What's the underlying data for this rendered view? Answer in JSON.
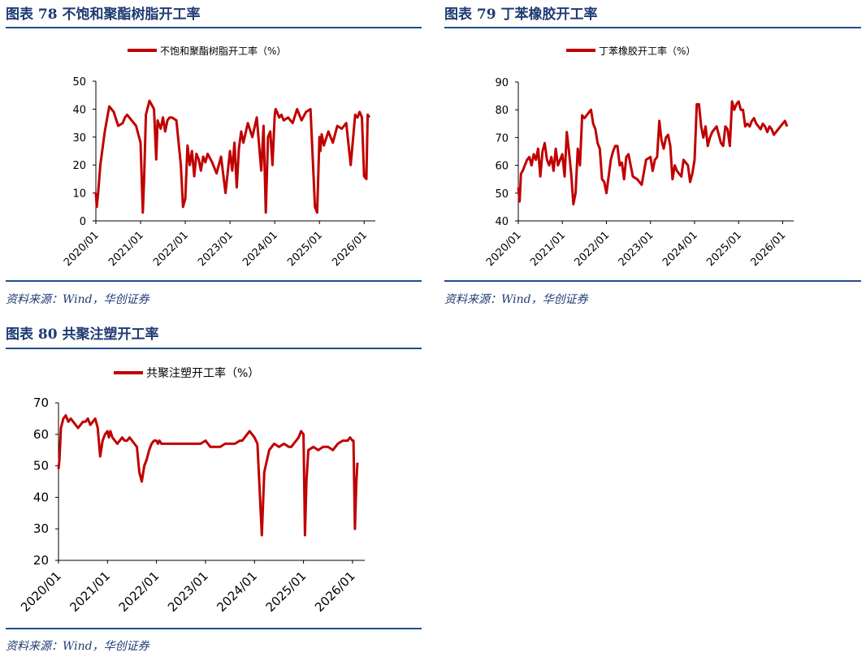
{
  "colors": {
    "line": "#c00000",
    "title": "#1f3b73",
    "rule": "#1f4e8c"
  },
  "charts": [
    {
      "title": "图表 78 不饱和聚酯树脂开工率",
      "source": "资料来源：Wind，华创证券",
      "chart_data": {
        "type": "line",
        "series": [
          {
            "name": "不饱和聚酯树脂开工率（%）",
            "x": [
              2020.0,
              2020.02,
              2020.05,
              2020.1,
              2020.2,
              2020.3,
              2020.35,
              2020.4,
              2020.5,
              2020.6,
              2020.65,
              2020.7,
              2020.8,
              2020.9,
              2021.0,
              2021.05,
              2021.08,
              2021.12,
              2021.2,
              2021.3,
              2021.35,
              2021.38,
              2021.4,
              2021.45,
              2021.5,
              2021.55,
              2021.6,
              2021.65,
              2021.7,
              2021.8,
              2021.9,
              2021.95,
              2022.0,
              2022.05,
              2022.1,
              2022.15,
              2022.2,
              2022.25,
              2022.3,
              2022.35,
              2022.4,
              2022.45,
              2022.5,
              2022.6,
              2022.7,
              2022.8,
              2022.9,
              2023.0,
              2023.05,
              2023.1,
              2023.15,
              2023.2,
              2023.25,
              2023.3,
              2023.4,
              2023.5,
              2023.6,
              2023.7,
              2023.75,
              2023.8,
              2023.85,
              2023.9,
              2023.95,
              2024.0,
              2024.02,
              2024.05,
              2024.1,
              2024.15,
              2024.2,
              2024.3,
              2024.4,
              2024.5,
              2024.6,
              2024.7,
              2024.8,
              2024.9,
              2024.95,
              2025.0,
              2025.02,
              2025.05,
              2025.1,
              2025.2,
              2025.3,
              2025.4,
              2025.5,
              2025.6,
              2025.7,
              2025.8,
              2025.85,
              2025.9,
              2025.95,
              2026.0,
              2026.05,
              2026.08,
              2026.12
            ],
            "values": [
              10,
              5,
              10,
              20,
              32,
              41,
              40,
              39,
              34,
              35,
              37,
              38,
              36,
              34,
              28,
              3,
              15,
              38,
              43,
              40,
              22,
              36,
              35,
              33,
              37,
              32,
              36,
              37,
              37,
              36,
              20,
              5,
              8,
              27,
              20,
              25,
              16,
              24,
              22,
              18,
              23,
              21,
              24,
              21,
              17,
              23,
              10,
              25,
              18,
              28,
              12,
              26,
              32,
              28,
              35,
              30,
              37,
              18,
              34,
              3,
              30,
              32,
              20,
              38,
              40,
              39,
              37,
              38,
              36,
              37,
              35,
              40,
              36,
              39,
              40,
              5,
              3,
              30,
              25,
              31,
              27,
              32,
              28,
              34,
              33,
              35,
              20,
              38,
              37,
              39,
              37,
              16,
              15,
              38,
              37
            ]
          }
        ],
        "xlabels": [
          "2020/01",
          "2021/01",
          "2022/01",
          "2023/01",
          "2024/01",
          "2025/01",
          "2026/01"
        ],
        "yticks": [
          0,
          10,
          20,
          30,
          40,
          50
        ],
        "ylim": [
          0,
          50
        ]
      }
    },
    {
      "title": "图表 79 丁苯橡胶开工率",
      "source": "资料来源：Wind，华创证券",
      "chart_data": {
        "type": "line",
        "series": [
          {
            "name": "丁苯橡胶开工率（%）",
            "x": [
              2020.0,
              2020.03,
              2020.06,
              2020.1,
              2020.15,
              2020.2,
              2020.25,
              2020.3,
              2020.35,
              2020.4,
              2020.45,
              2020.5,
              2020.55,
              2020.6,
              2020.65,
              2020.7,
              2020.75,
              2020.8,
              2020.85,
              2020.9,
              2020.95,
              2021.0,
              2021.05,
              2021.1,
              2021.15,
              2021.2,
              2021.25,
              2021.3,
              2021.35,
              2021.4,
              2021.45,
              2021.5,
              2021.55,
              2021.6,
              2021.65,
              2021.7,
              2021.75,
              2021.8,
              2021.85,
              2021.9,
              2021.95,
              2022.0,
              2022.05,
              2022.1,
              2022.15,
              2022.2,
              2022.25,
              2022.3,
              2022.35,
              2022.4,
              2022.45,
              2022.5,
              2022.55,
              2022.6,
              2022.7,
              2022.8,
              2022.9,
              2023.0,
              2023.05,
              2023.1,
              2023.15,
              2023.2,
              2023.25,
              2023.3,
              2023.35,
              2023.4,
              2023.45,
              2023.5,
              2023.55,
              2023.6,
              2023.65,
              2023.7,
              2023.75,
              2023.8,
              2023.85,
              2023.9,
              2023.95,
              2024.0,
              2024.05,
              2024.1,
              2024.15,
              2024.2,
              2024.25,
              2024.3,
              2024.35,
              2024.4,
              2024.45,
              2024.5,
              2024.55,
              2024.6,
              2024.65,
              2024.7,
              2024.75,
              2024.8,
              2024.85,
              2024.9,
              2024.95,
              2025.0,
              2025.05,
              2025.1,
              2025.15,
              2025.2,
              2025.25,
              2025.3,
              2025.35,
              2025.4,
              2025.45,
              2025.5,
              2025.55,
              2025.6,
              2025.65,
              2025.7,
              2025.75,
              2025.8,
              2025.85,
              2025.9,
              2025.95,
              2026.0,
              2026.05,
              2026.1
            ],
            "values": [
              52,
              47,
              57,
              58,
              60,
              62,
              63,
              60,
              64,
              62,
              66,
              56,
              65,
              68,
              62,
              60,
              63,
              58,
              66,
              60,
              62,
              64,
              56,
              72,
              65,
              57,
              46,
              50,
              66,
              60,
              78,
              77,
              78,
              79,
              80,
              75,
              73,
              68,
              66,
              55,
              54,
              50,
              56,
              62,
              65,
              67,
              67,
              60,
              61,
              55,
              63,
              64,
              60,
              56,
              55,
              53,
              62,
              63,
              58,
              62,
              63,
              76,
              69,
              66,
              70,
              71,
              67,
              55,
              60,
              58,
              57,
              56,
              62,
              61,
              60,
              54,
              57,
              62,
              82,
              82,
              74,
              70,
              74,
              67,
              70,
              72,
              73,
              74,
              71,
              68,
              67,
              74,
              73,
              67,
              83,
              80,
              82,
              83,
              80,
              80,
              74,
              75,
              74,
              76,
              77,
              75,
              74,
              73,
              75,
              74,
              72,
              74,
              73,
              71,
              72,
              73,
              74,
              75,
              76,
              74
            ],
            "values_note": ""
          }
        ],
        "xlabels": [
          "2020/01",
          "2021/01",
          "2022/01",
          "2023/01",
          "2024/01",
          "2025/01",
          "2026/01"
        ],
        "yticks": [
          40,
          50,
          60,
          70,
          80,
          90
        ],
        "ylim": [
          40,
          90
        ]
      }
    },
    {
      "title": "图表 80 共聚注塑开工率",
      "source": "资料来源：Wind，华创证券",
      "chart_data": {
        "type": "line",
        "series": [
          {
            "name": "共聚注塑开工率（%）",
            "x": [
              2020.0,
              2020.02,
              2020.05,
              2020.1,
              2020.15,
              2020.2,
              2020.25,
              2020.3,
              2020.35,
              2020.4,
              2020.45,
              2020.5,
              2020.55,
              2020.6,
              2020.65,
              2020.7,
              2020.75,
              2020.8,
              2020.85,
              2020.9,
              2020.95,
              2021.0,
              2021.03,
              2021.06,
              2021.1,
              2021.15,
              2021.2,
              2021.25,
              2021.3,
              2021.35,
              2021.4,
              2021.45,
              2021.5,
              2021.55,
              2021.6,
              2021.65,
              2021.7,
              2021.75,
              2021.8,
              2021.85,
              2021.9,
              2021.95,
              2022.0,
              2022.03,
              2022.06,
              2022.1,
              2022.15,
              2022.2,
              2022.25,
              2022.3,
              2022.4,
              2022.5,
              2022.6,
              2022.7,
              2022.8,
              2022.9,
              2023.0,
              2023.05,
              2023.1,
              2023.2,
              2023.3,
              2023.4,
              2023.5,
              2023.6,
              2023.7,
              2023.75,
              2023.8,
              2023.85,
              2023.9,
              2023.95,
              2024.0,
              2024.03,
              2024.06,
              2024.1,
              2024.15,
              2024.2,
              2024.3,
              2024.4,
              2024.5,
              2024.6,
              2024.7,
              2024.75,
              2024.8,
              2024.85,
              2024.9,
              2024.95,
              2025.0,
              2025.03,
              2025.06,
              2025.1,
              2025.2,
              2025.3,
              2025.4,
              2025.5,
              2025.6,
              2025.7,
              2025.8,
              2025.9,
              2025.95,
              2026.0,
              2026.02,
              2026.05,
              2026.08,
              2026.1
            ],
            "values": [
              49,
              52,
              62,
              65,
              66,
              64,
              65,
              64,
              63,
              62,
              63,
              64,
              64,
              65,
              63,
              64,
              65,
              62,
              53,
              58,
              60,
              61,
              59,
              61,
              59,
              58,
              57,
              58,
              59,
              58,
              58,
              59,
              58,
              57,
              56,
              48,
              45,
              50,
              52,
              55,
              57,
              58,
              58,
              57,
              58,
              57,
              57,
              57,
              57,
              57,
              57,
              57,
              57,
              57,
              57,
              57,
              58,
              57,
              56,
              56,
              56,
              57,
              57,
              57,
              58,
              58,
              59,
              60,
              61,
              60,
              59,
              58,
              57,
              44,
              28,
              48,
              55,
              57,
              56,
              57,
              56,
              56,
              57,
              58,
              59,
              61,
              60,
              28,
              45,
              55,
              56,
              55,
              56,
              56,
              55,
              57,
              58,
              58,
              59,
              58,
              58,
              30,
              45,
              51
            ]
          }
        ],
        "xlabels": [
          "2020/01",
          "2021/01",
          "2022/01",
          "2023/01",
          "2024/01",
          "2025/01",
          "2026/01"
        ],
        "yticks": [
          20,
          30,
          40,
          50,
          60,
          70
        ],
        "ylim": [
          20,
          70
        ]
      }
    }
  ]
}
